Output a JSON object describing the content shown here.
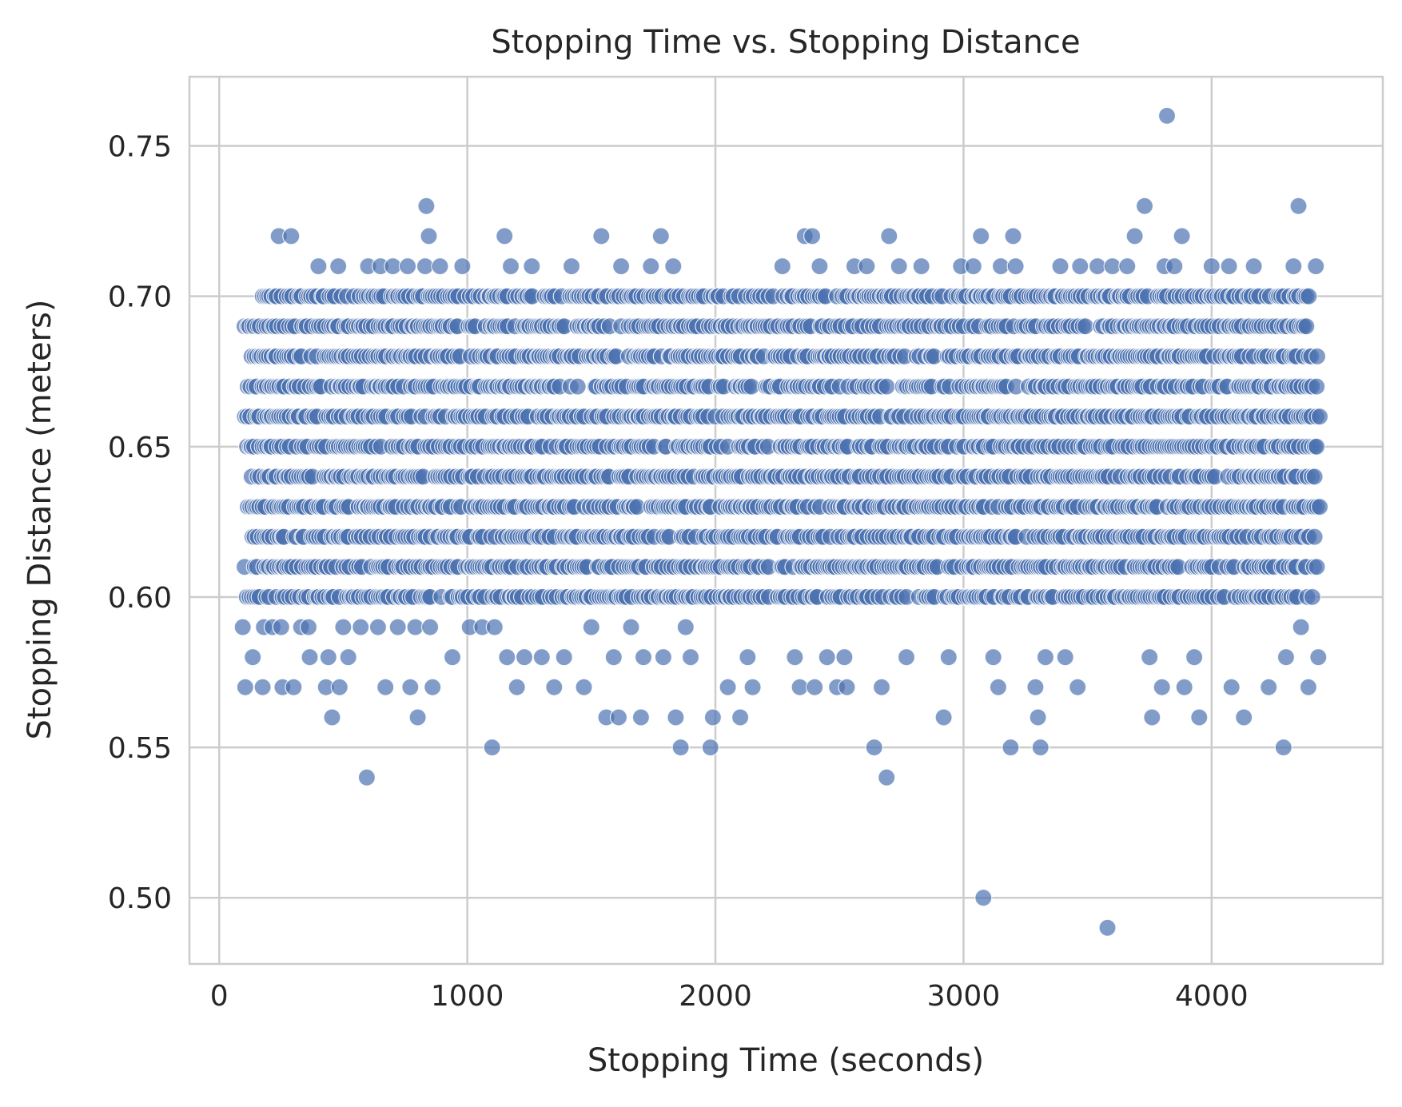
{
  "chart_data": {
    "type": "scatter",
    "title": "Stopping Time vs. Stopping Distance",
    "xlabel": "Stopping Time (seconds)",
    "ylabel": "Stopping Distance (meters)",
    "xlim": [
      -120,
      4690
    ],
    "ylim": [
      0.478,
      0.773
    ],
    "xticks": [
      0,
      1000,
      2000,
      3000,
      4000
    ],
    "xtick_labels": [
      "0",
      "1000",
      "2000",
      "3000",
      "4000"
    ],
    "yticks": [
      0.5,
      0.55,
      0.6,
      0.65,
      0.7,
      0.75
    ],
    "ytick_labels": [
      "0.50",
      "0.55",
      "0.60",
      "0.65",
      "0.70",
      "0.75"
    ],
    "grid": true,
    "marker_color": "#4c72b0",
    "marker_alpha": 0.7,
    "series": [
      {
        "band_summary": [
          {
            "y": 0.69,
            "x_range": [
              100,
              4420
            ]
          },
          {
            "y": 0.68,
            "x_range": [
              130,
              4420
            ]
          },
          {
            "y": 0.67,
            "x_range": [
              110,
              4420
            ]
          },
          {
            "y": 0.66,
            "x_range": [
              100,
              4430
            ]
          },
          {
            "y": 0.65,
            "x_range": [
              110,
              4420
            ]
          },
          {
            "y": 0.64,
            "x_range": [
              130,
              4420
            ]
          },
          {
            "y": 0.63,
            "x_range": [
              110,
              4430
            ]
          },
          {
            "y": 0.62,
            "x_range": [
              130,
              4420
            ]
          },
          {
            "y": 0.61,
            "x_range": [
              100,
              4420
            ]
          },
          {
            "y": 0.6,
            "x_range": [
              110,
              4420
            ]
          },
          {
            "y": 0.7,
            "x_range": [
              170,
              4410
            ]
          }
        ],
        "points": [
          [
            95,
            0.59
          ],
          [
            105,
            0.57
          ],
          [
            135,
            0.58
          ],
          [
            175,
            0.57
          ],
          [
            180,
            0.59
          ],
          [
            215,
            0.59
          ],
          [
            240,
            0.72
          ],
          [
            250,
            0.59
          ],
          [
            255,
            0.57
          ],
          [
            290,
            0.72
          ],
          [
            300,
            0.57
          ],
          [
            330,
            0.59
          ],
          [
            360,
            0.59
          ],
          [
            365,
            0.58
          ],
          [
            400,
            0.71
          ],
          [
            430,
            0.57
          ],
          [
            440,
            0.58
          ],
          [
            455,
            0.56
          ],
          [
            480,
            0.71
          ],
          [
            485,
            0.57
          ],
          [
            500,
            0.59
          ],
          [
            520,
            0.58
          ],
          [
            570,
            0.59
          ],
          [
            595,
            0.54
          ],
          [
            600,
            0.71
          ],
          [
            640,
            0.59
          ],
          [
            650,
            0.71
          ],
          [
            670,
            0.57
          ],
          [
            700,
            0.71
          ],
          [
            720,
            0.59
          ],
          [
            760,
            0.71
          ],
          [
            770,
            0.57
          ],
          [
            790,
            0.59
          ],
          [
            800,
            0.56
          ],
          [
            830,
            0.71
          ],
          [
            835,
            0.73
          ],
          [
            845,
            0.72
          ],
          [
            850,
            0.59
          ],
          [
            860,
            0.57
          ],
          [
            890,
            0.71
          ],
          [
            940,
            0.58
          ],
          [
            980,
            0.71
          ],
          [
            1010,
            0.59
          ],
          [
            1060,
            0.59
          ],
          [
            1100,
            0.55
          ],
          [
            1110,
            0.59
          ],
          [
            1150,
            0.72
          ],
          [
            1160,
            0.58
          ],
          [
            1175,
            0.71
          ],
          [
            1200,
            0.57
          ],
          [
            1230,
            0.58
          ],
          [
            1260,
            0.71
          ],
          [
            1300,
            0.58
          ],
          [
            1350,
            0.57
          ],
          [
            1390,
            0.58
          ],
          [
            1420,
            0.71
          ],
          [
            1470,
            0.57
          ],
          [
            1500,
            0.59
          ],
          [
            1540,
            0.72
          ],
          [
            1560,
            0.56
          ],
          [
            1590,
            0.58
          ],
          [
            1610,
            0.56
          ],
          [
            1620,
            0.71
          ],
          [
            1660,
            0.59
          ],
          [
            1700,
            0.56
          ],
          [
            1710,
            0.58
          ],
          [
            1740,
            0.71
          ],
          [
            1780,
            0.72
          ],
          [
            1790,
            0.58
          ],
          [
            1830,
            0.71
          ],
          [
            1840,
            0.56
          ],
          [
            1860,
            0.55
          ],
          [
            1880,
            0.59
          ],
          [
            1900,
            0.58
          ],
          [
            1980,
            0.55
          ],
          [
            1990,
            0.56
          ],
          [
            2050,
            0.57
          ],
          [
            2100,
            0.56
          ],
          [
            2130,
            0.58
          ],
          [
            2150,
            0.57
          ],
          [
            2270,
            0.71
          ],
          [
            2320,
            0.58
          ],
          [
            2340,
            0.57
          ],
          [
            2360,
            0.72
          ],
          [
            2390,
            0.72
          ],
          [
            2400,
            0.57
          ],
          [
            2420,
            0.71
          ],
          [
            2450,
            0.58
          ],
          [
            2490,
            0.57
          ],
          [
            2520,
            0.58
          ],
          [
            2530,
            0.57
          ],
          [
            2560,
            0.71
          ],
          [
            2610,
            0.71
          ],
          [
            2640,
            0.55
          ],
          [
            2670,
            0.57
          ],
          [
            2690,
            0.54
          ],
          [
            2700,
            0.72
          ],
          [
            2740,
            0.71
          ],
          [
            2770,
            0.58
          ],
          [
            2830,
            0.71
          ],
          [
            2920,
            0.56
          ],
          [
            2940,
            0.58
          ],
          [
            2990,
            0.71
          ],
          [
            3040,
            0.71
          ],
          [
            3070,
            0.72
          ],
          [
            3080,
            0.5
          ],
          [
            3120,
            0.58
          ],
          [
            3140,
            0.57
          ],
          [
            3150,
            0.71
          ],
          [
            3190,
            0.55
          ],
          [
            3200,
            0.72
          ],
          [
            3210,
            0.71
          ],
          [
            3290,
            0.57
          ],
          [
            3300,
            0.56
          ],
          [
            3310,
            0.55
          ],
          [
            3330,
            0.58
          ],
          [
            3390,
            0.71
          ],
          [
            3410,
            0.58
          ],
          [
            3460,
            0.57
          ],
          [
            3470,
            0.71
          ],
          [
            3540,
            0.71
          ],
          [
            3580,
            0.49
          ],
          [
            3600,
            0.71
          ],
          [
            3660,
            0.71
          ],
          [
            3690,
            0.72
          ],
          [
            3730,
            0.73
          ],
          [
            3750,
            0.58
          ],
          [
            3760,
            0.56
          ],
          [
            3800,
            0.57
          ],
          [
            3810,
            0.71
          ],
          [
            3820,
            0.76
          ],
          [
            3850,
            0.71
          ],
          [
            3880,
            0.72
          ],
          [
            3890,
            0.57
          ],
          [
            3930,
            0.58
          ],
          [
            3950,
            0.56
          ],
          [
            4000,
            0.71
          ],
          [
            4070,
            0.71
          ],
          [
            4080,
            0.57
          ],
          [
            4130,
            0.56
          ],
          [
            4170,
            0.71
          ],
          [
            4230,
            0.57
          ],
          [
            4290,
            0.55
          ],
          [
            4300,
            0.58
          ],
          [
            4330,
            0.71
          ],
          [
            4350,
            0.73
          ],
          [
            4360,
            0.59
          ],
          [
            4390,
            0.57
          ],
          [
            4420,
            0.71
          ],
          [
            4430,
            0.58
          ]
        ]
      }
    ]
  }
}
